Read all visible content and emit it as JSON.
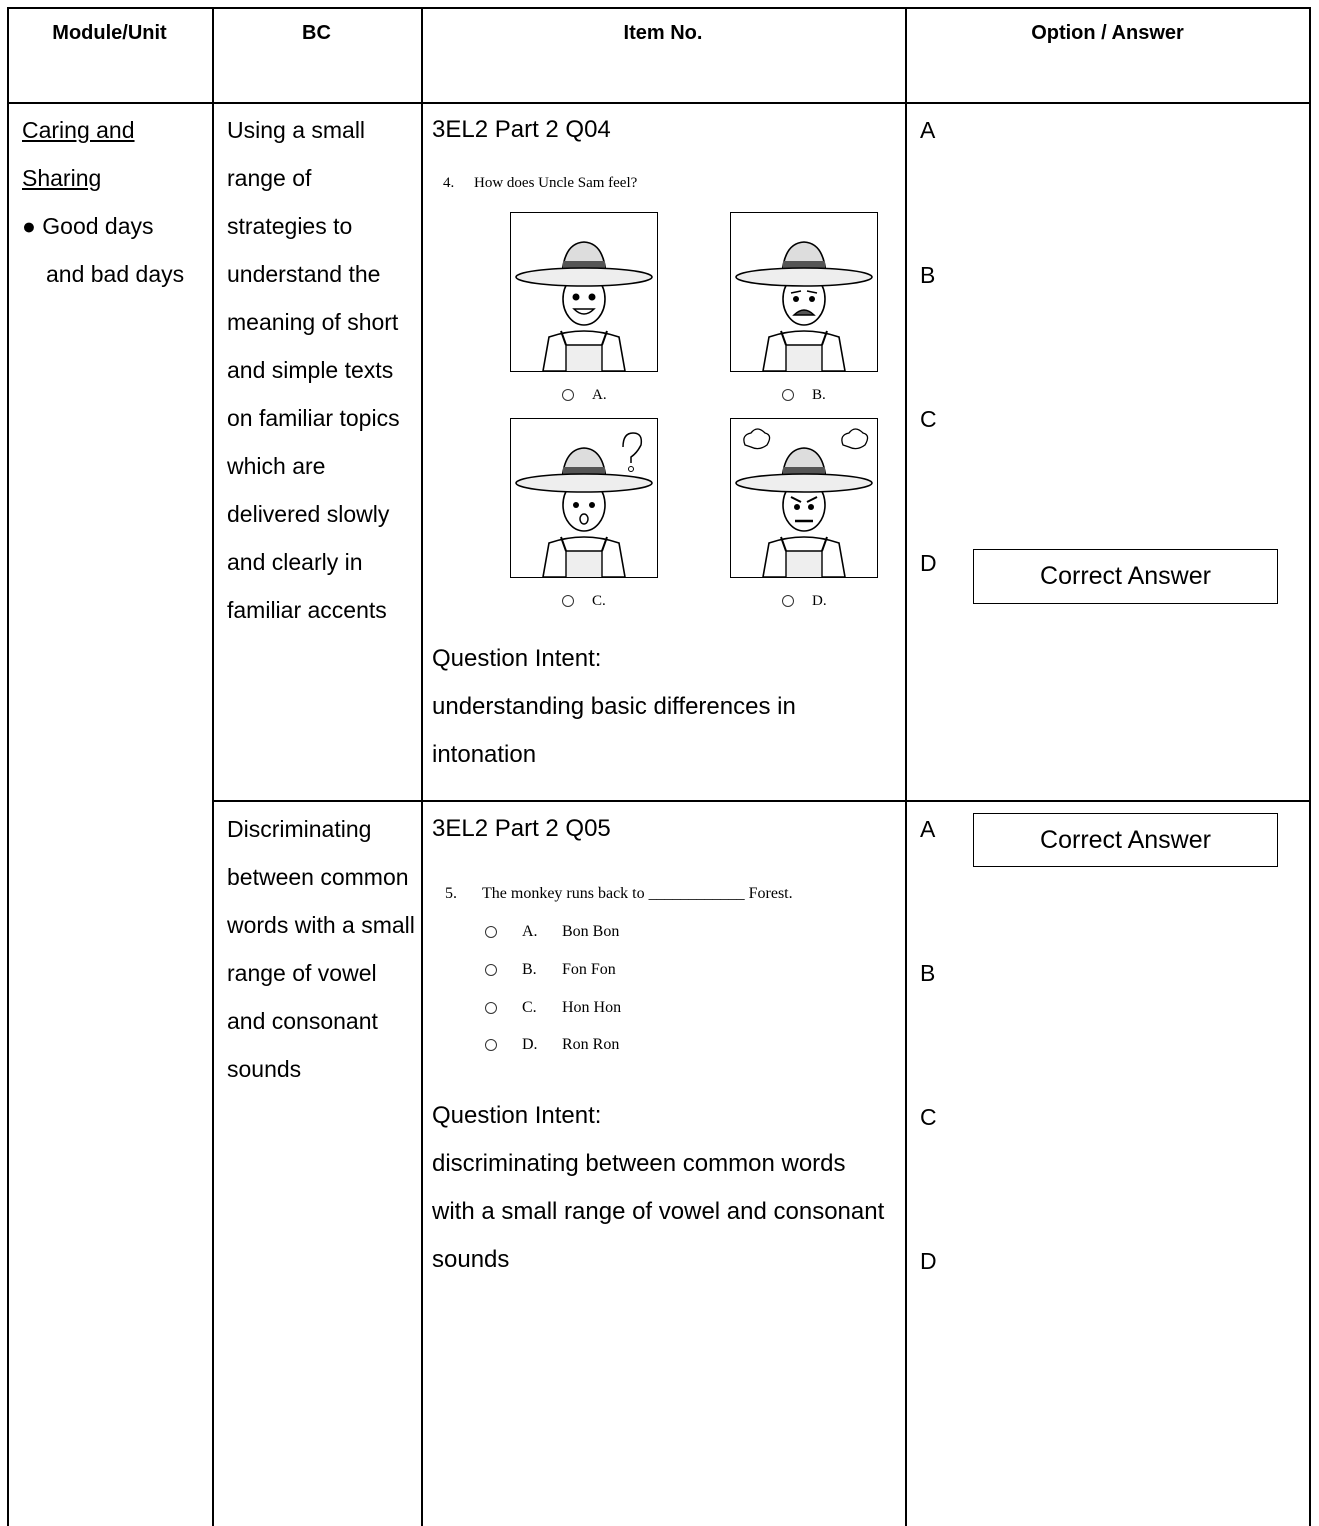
{
  "table": {
    "header": [
      "Module/Unit",
      "BC",
      "Item No.",
      "Option / Answer"
    ],
    "module": {
      "title": "Caring and Sharing",
      "bullet": "● Good days and bad days"
    },
    "items": [
      {
        "bc": "Using a small range of strategies to understand the meaning of short and simple texts on familiar topics which are delivered slowly and clearly in familiar accents",
        "code": "3EL2 Part 2 Q04",
        "question_number": "4.",
        "question": "How does Uncle Sam feel?",
        "choices": [
          "A.",
          "B.",
          "C.",
          "D."
        ],
        "intent_label": "Question Intent:",
        "intent": "understanding basic differences in intonation",
        "options": [
          {
            "letter": "A"
          },
          {
            "letter": "B"
          },
          {
            "letter": "C"
          },
          {
            "letter": "D",
            "note": "Correct Answer"
          }
        ]
      },
      {
        "bc": "Discriminating between common words with a small range of vowel and consonant sounds",
        "code": "3EL2 Part 2 Q05",
        "question_number": "5.",
        "question": "The monkey runs back to ____________ Forest.",
        "choices": [
          {
            "letter": "A.",
            "text": "Bon Bon"
          },
          {
            "letter": "B.",
            "text": "Fon Fon"
          },
          {
            "letter": "C.",
            "text": "Hon Hon"
          },
          {
            "letter": "D.",
            "text": "Ron Ron"
          }
        ],
        "intent_label": "Question Intent:",
        "intent": "discriminating between common words with a small range of vowel and consonant sounds",
        "options": [
          {
            "letter": "A",
            "note": "Correct Answer"
          },
          {
            "letter": "B"
          },
          {
            "letter": "C"
          },
          {
            "letter": "D"
          }
        ]
      }
    ]
  }
}
